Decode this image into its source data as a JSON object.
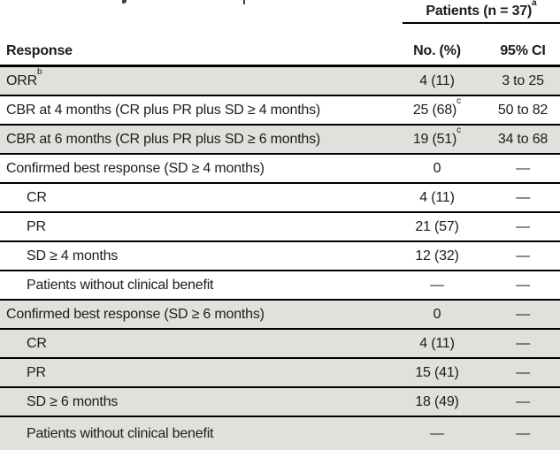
{
  "table": {
    "patients_header": {
      "text": "Patients (n = 37)",
      "sup": "a"
    },
    "columns": {
      "response": "Response",
      "no_pct": "No. (%)",
      "ci": "95% CI"
    },
    "colors": {
      "row_shade": "#e2e0dd",
      "rule": "#000000"
    },
    "rows": [
      {
        "label": "ORR",
        "label_sup": "b",
        "no": "4 (11)",
        "no_sup": "",
        "ci": "3 to 25"
      },
      {
        "label": "CBR at 4 months (CR plus PR plus SD ≥ 4 months)",
        "label_sup": "",
        "no": "25 (68)",
        "no_sup": "c",
        "ci": "50 to 82"
      },
      {
        "label": "CBR at 6 months (CR plus PR plus SD ≥ 6 months)",
        "label_sup": "",
        "no": "19 (51)",
        "no_sup": "c",
        "ci": "34 to 68"
      },
      {
        "label": "Confirmed best response (SD ≥ 4 months)",
        "label_sup": "",
        "no": "0",
        "no_sup": "",
        "ci": "—"
      },
      {
        "label": "CR",
        "label_sup": "",
        "no": "4 (11)",
        "no_sup": "",
        "ci": "—"
      },
      {
        "label": "PR",
        "label_sup": "",
        "no": "21 (57)",
        "no_sup": "",
        "ci": "—"
      },
      {
        "label": "SD ≥ 4 months",
        "label_sup": "",
        "no": "12 (32)",
        "no_sup": "",
        "ci": "—"
      },
      {
        "label": "Patients without clinical benefit",
        "label_sup": "",
        "no": "—",
        "no_sup": "",
        "ci": "—"
      },
      {
        "label": "Confirmed best response (SD ≥ 6 months)",
        "label_sup": "",
        "no": "0",
        "no_sup": "",
        "ci": "—"
      },
      {
        "label": "CR",
        "label_sup": "",
        "no": "4 (11)",
        "no_sup": "",
        "ci": "—"
      },
      {
        "label": "PR",
        "label_sup": "",
        "no": "15 (41)",
        "no_sup": "",
        "ci": "—"
      },
      {
        "label": "SD ≥ 6 months",
        "label_sup": "",
        "no": "18 (49)",
        "no_sup": "",
        "ci": "—"
      },
      {
        "label": "Patients without clinical benefit",
        "label_sup": "",
        "no": "—",
        "no_sup": "",
        "ci": "—"
      }
    ]
  }
}
